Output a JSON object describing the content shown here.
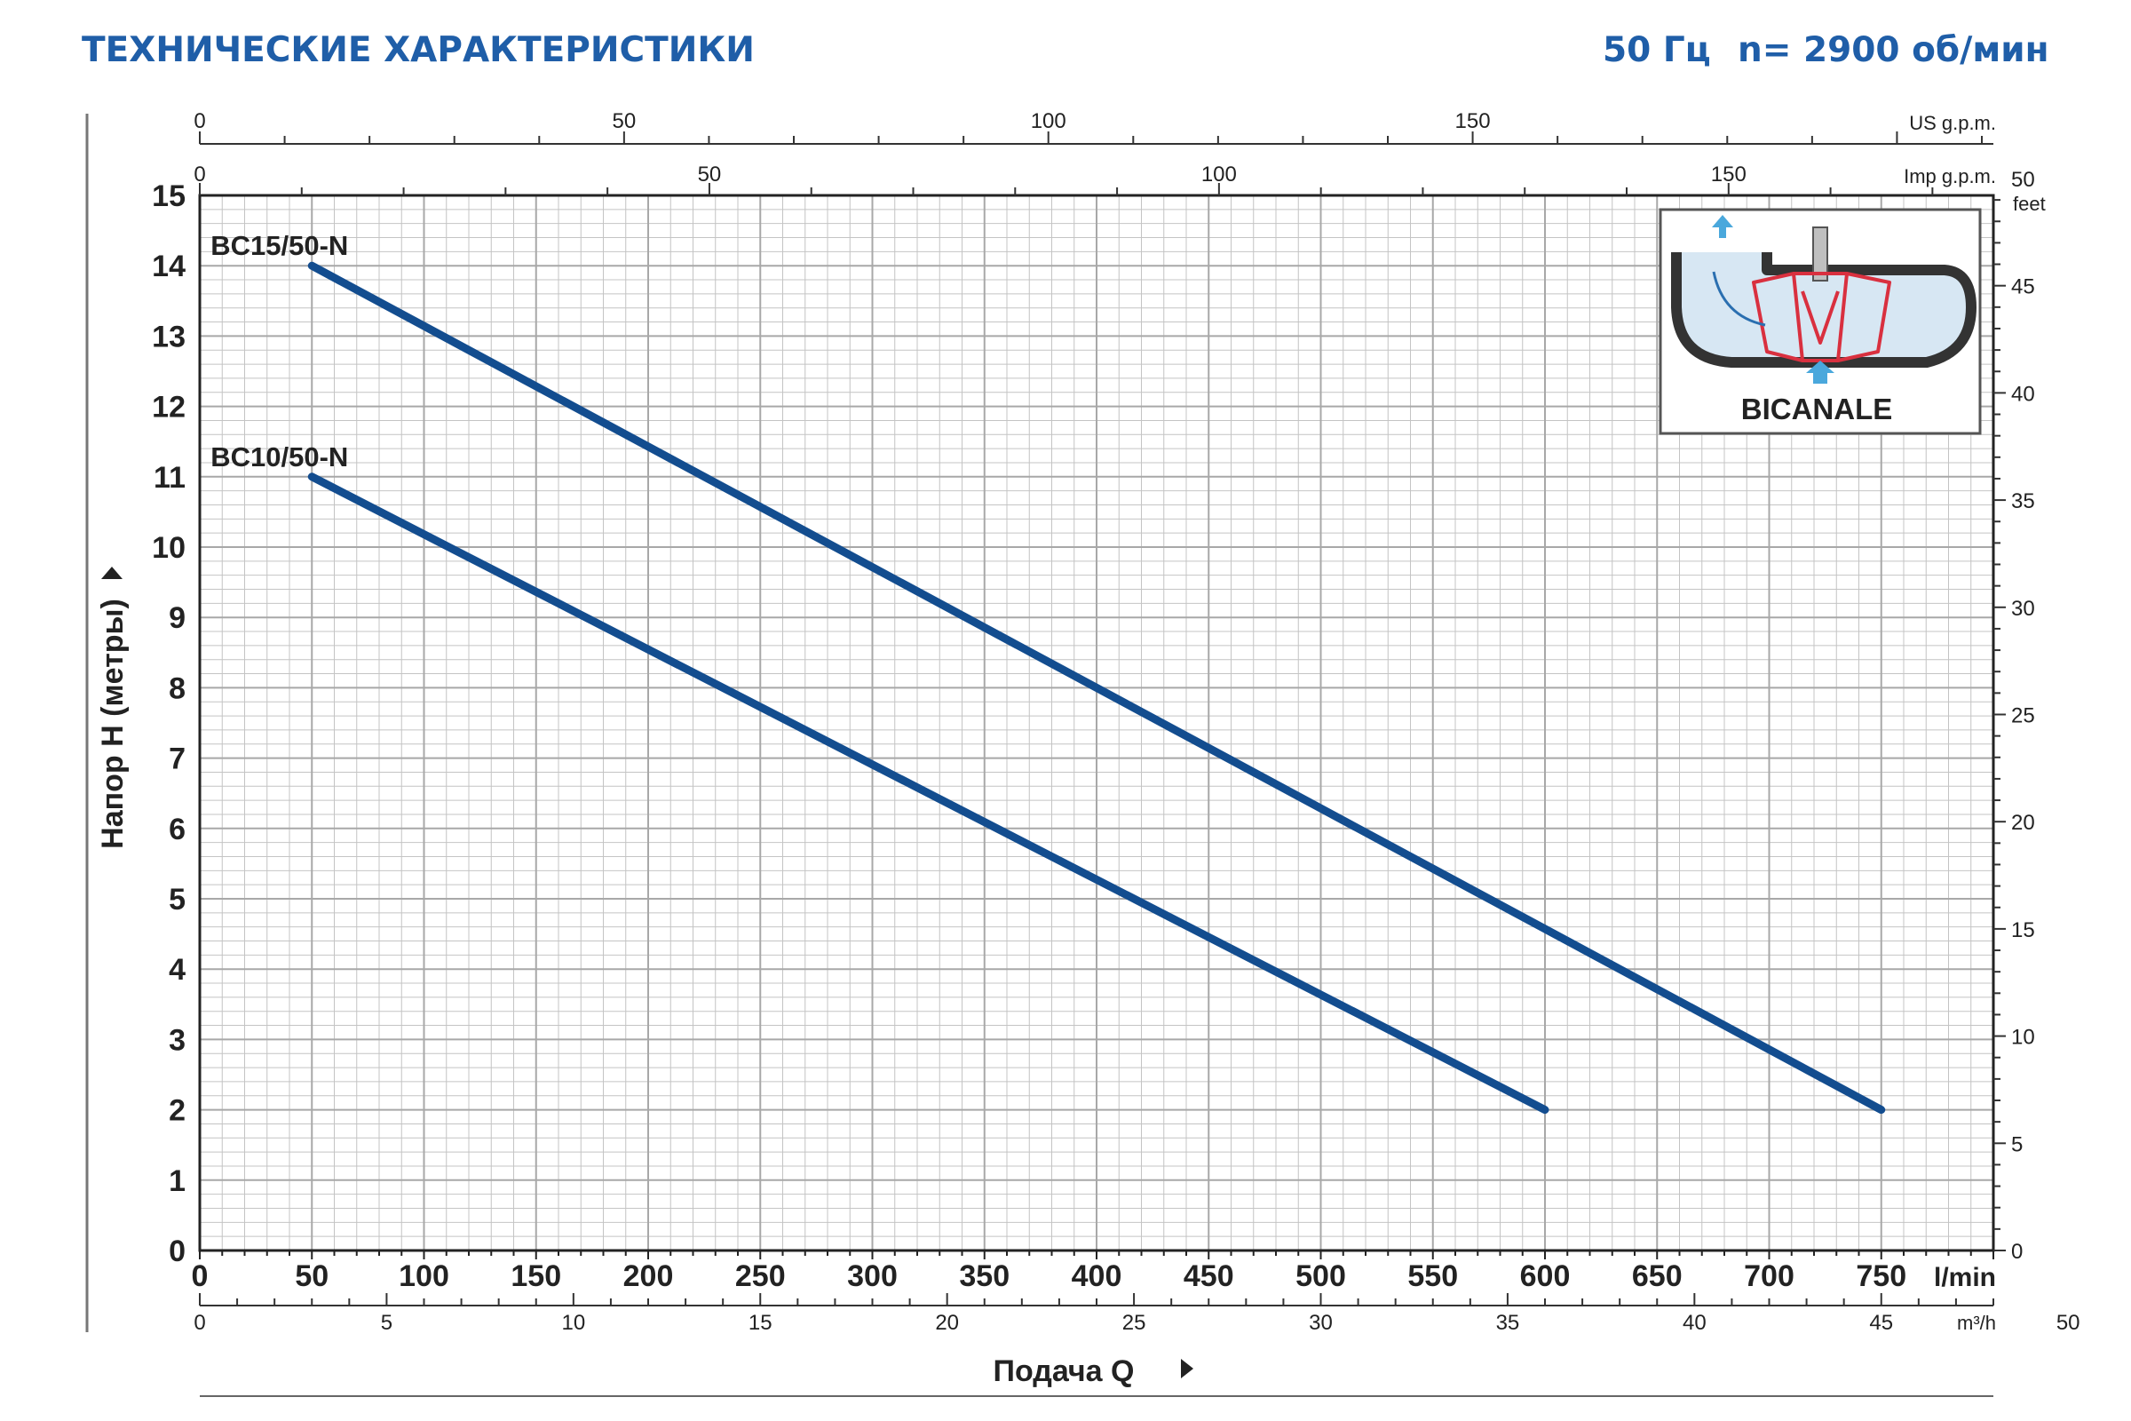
{
  "header": {
    "title": "ТЕХНИЧЕСКИЕ ХАРАКТЕРИСТИКИ",
    "frequency": "50 Гц",
    "speed": "n= 2900 об/мин"
  },
  "inset": {
    "label": "BICANALE",
    "colors": {
      "impeller": "#d9303f",
      "arrow": "#4aa8dc",
      "casing": "#333333"
    }
  },
  "colors": {
    "curve": "#134d8f",
    "header": "#1f5ea8",
    "grid": "#c4c4c4"
  },
  "chart_data": {
    "type": "line",
    "xlabel": "Подача Q",
    "x_unit": "l/min",
    "ylabel": "Напор H (метры)",
    "xlim": [
      0,
      800
    ],
    "ylim": [
      0,
      15
    ],
    "grid": true,
    "x_ticks": [
      "0",
      "50",
      "100",
      "150",
      "200",
      "250",
      "300",
      "350",
      "400",
      "450",
      "500",
      "550",
      "600",
      "650",
      "700",
      "750"
    ],
    "y_ticks": [
      "0",
      "1",
      "2",
      "3",
      "4",
      "5",
      "6",
      "7",
      "8",
      "9",
      "10",
      "11",
      "12",
      "13",
      "14",
      "15"
    ],
    "secondary_axes": {
      "m3h": {
        "label": "m³/h",
        "ticks": [
          "0",
          "5",
          "10",
          "15",
          "20",
          "25",
          "30",
          "35",
          "40",
          "45",
          "50"
        ]
      },
      "us_gpm": {
        "label": "US g.p.m.",
        "ticks": [
          "0",
          "50",
          "100",
          "150"
        ]
      },
      "imp_gpm": {
        "label": "Imp g.p.m.",
        "ticks": [
          "0",
          "50",
          "100",
          "150"
        ]
      },
      "feet": {
        "label": "feet",
        "ticks": [
          "0",
          "5",
          "10",
          "15",
          "20",
          "25",
          "30",
          "35",
          "40",
          "45",
          "50"
        ]
      }
    },
    "series": [
      {
        "name": "BC15/50-N",
        "x": [
          50,
          750
        ],
        "y": [
          14,
          2
        ]
      },
      {
        "name": "BC10/50-N",
        "x": [
          50,
          600
        ],
        "y": [
          11,
          2
        ]
      }
    ]
  }
}
